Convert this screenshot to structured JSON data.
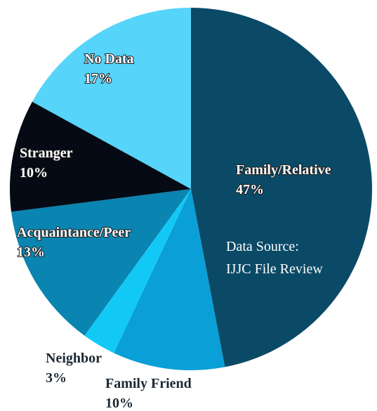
{
  "chart_data": {
    "type": "pie",
    "categories": [
      "Family/Relative",
      "Family Friend",
      "Neighbor",
      "Acquaintance/Peer",
      "Stranger",
      "No Data"
    ],
    "values": [
      47,
      10,
      3,
      13,
      10,
      17
    ],
    "value_labels": [
      "47%",
      "10%",
      "3%",
      "13%",
      "10%",
      "17%"
    ],
    "colors": [
      "#0b4a66",
      "#0a9fd6",
      "#12c9f6",
      "#0a84b0",
      "#050a14",
      "#56d4fa"
    ],
    "annotation": [
      "Data Source:",
      "IJJC File Review"
    ]
  }
}
